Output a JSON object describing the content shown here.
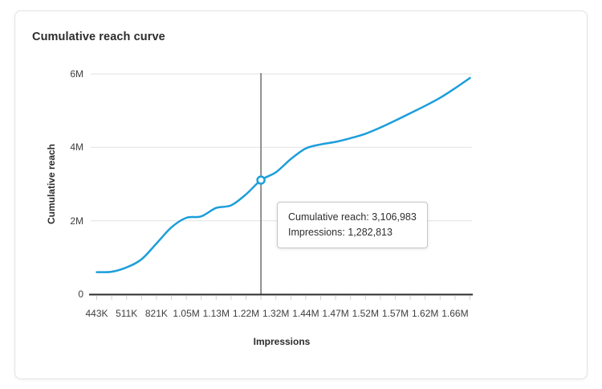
{
  "card": {
    "title": "Cumulative reach curve"
  },
  "chart_data": {
    "type": "line",
    "title": "Cumulative reach curve",
    "xlabel": "Impressions",
    "ylabel": "Cumulative reach",
    "grid": true,
    "legend": "none",
    "ylim": [
      0,
      6000000
    ],
    "y_tick_labels": [
      "0",
      "2M",
      "4M",
      "6M"
    ],
    "y_tick_values": [
      0,
      2000000,
      4000000,
      6000000
    ],
    "x_tick_labels": [
      "443K",
      "511K",
      "821K",
      "1.05M",
      "1.13M",
      "1.22M",
      "1.32M",
      "1.44M",
      "1.47M",
      "1.52M",
      "1.57M",
      "1.62M",
      "1.66M"
    ],
    "x_labeled_every_other_tick": true,
    "num_points": 26,
    "series": [
      {
        "name": "Cumulative reach",
        "values": [
          600000,
          610000,
          730000,
          950000,
          1380000,
          1820000,
          2080000,
          2120000,
          2350000,
          2420000,
          2720000,
          3106983,
          3320000,
          3680000,
          3970000,
          4080000,
          4150000,
          4250000,
          4370000,
          4540000,
          4730000,
          4930000,
          5130000,
          5350000,
          5610000,
          5890000
        ]
      }
    ],
    "highlight": {
      "point_index": 11,
      "cumulative_reach": 3106983,
      "impressions": 1282813
    },
    "colors": {
      "line": "#1c9edb",
      "grid": "#e1e1e1",
      "axis": "#2b2b2b",
      "tick": "#d0d0d0",
      "crosshair": "#6d6d6d",
      "marker_fill": "#ffffff"
    }
  },
  "tooltip": {
    "reach_line": "Cumulative reach: 3,106,983",
    "impressions_line": "Impressions: 1,282,813"
  }
}
